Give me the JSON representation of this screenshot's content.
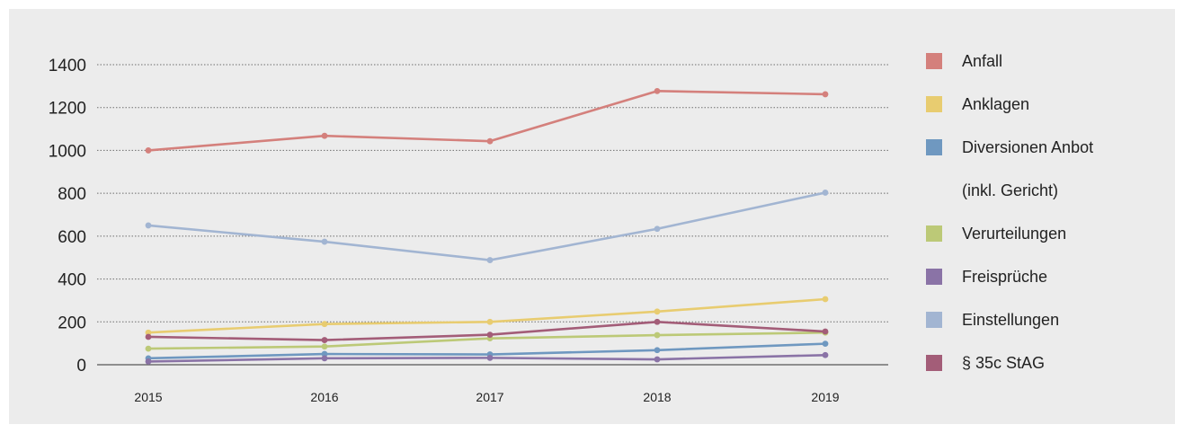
{
  "chart_data": {
    "type": "line",
    "x": [
      "2015",
      "2016",
      "2017",
      "2018",
      "2019"
    ],
    "ylim": [
      0,
      1400
    ],
    "yticks": [
      "0",
      "200",
      "400",
      "600",
      "800",
      "1000",
      "1200",
      "1400"
    ],
    "grid": true,
    "legend_position": "right",
    "series": [
      {
        "name": "Anfall",
        "color": "#d4807c",
        "values": [
          1000,
          1068,
          1043,
          1277,
          1262
        ]
      },
      {
        "name": "Anklagen",
        "color": "#e8cc70",
        "values": [
          150,
          190,
          200,
          248,
          306
        ]
      },
      {
        "name": "Diversionen Anbot",
        "name_line2": "(inkl. Gericht)",
        "color": "#6f98c0",
        "values": [
          30,
          50,
          48,
          68,
          98
        ]
      },
      {
        "name": "Verurteilungen",
        "color": "#bcc977",
        "values": [
          75,
          85,
          123,
          138,
          150
        ]
      },
      {
        "name": "Freisprüche",
        "color": "#8a73a6",
        "values": [
          15,
          30,
          32,
          25,
          45
        ]
      },
      {
        "name": "Einstellungen",
        "color": "#a2b5d2",
        "values": [
          650,
          574,
          488,
          634,
          803
        ]
      },
      {
        "name": "§ 35c StAG",
        "color": "#a35d78",
        "values": [
          130,
          115,
          140,
          200,
          155
        ]
      }
    ]
  }
}
